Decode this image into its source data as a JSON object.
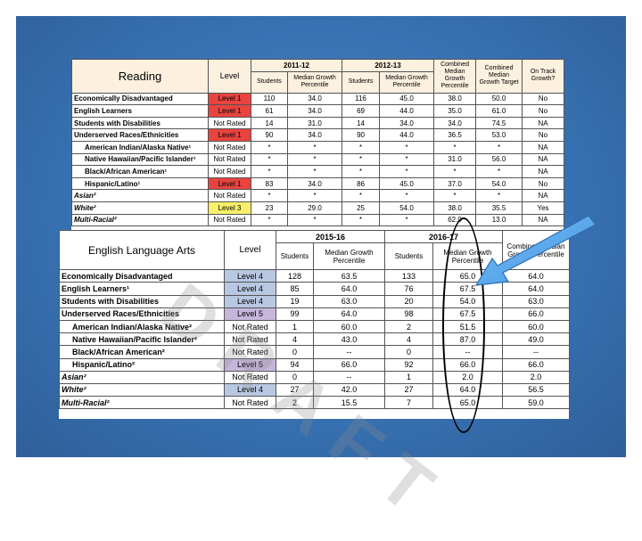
{
  "reading": {
    "title": "Reading",
    "level_header": "Level",
    "year1": "2011-12",
    "year2": "2012-13",
    "students_header": "Students",
    "mgp_header": "Median Growth Percentile",
    "combined_mgp_header": "Combined Median Growth Percentile",
    "combined_target_header": "Combined Median Growth Target",
    "on_track_header": "On Track Growth?",
    "rows": [
      {
        "label": "Economically Disadvantaged",
        "level": "Level 1",
        "s1": "110",
        "m1": "34.0",
        "s2": "116",
        "m2": "45.0",
        "cmgp": "38.0",
        "target": "50.0",
        "track": "No",
        "style": "red",
        "indent": false,
        "italic": false
      },
      {
        "label": "English Learners",
        "level": "Level 1",
        "s1": "61",
        "m1": "34.0",
        "s2": "69",
        "m2": "44.0",
        "cmgp": "35.0",
        "target": "61.0",
        "track": "No",
        "style": "red",
        "indent": false,
        "italic": false
      },
      {
        "label": "Students with Disabilities",
        "level": "Not Rated",
        "s1": "14",
        "m1": "31.0",
        "s2": "14",
        "m2": "34.0",
        "cmgp": "34.0",
        "target": "74.5",
        "track": "NA",
        "style": "plain",
        "indent": false,
        "italic": false
      },
      {
        "label": "Underserved Races/Ethnicities",
        "level": "Level 1",
        "s1": "90",
        "m1": "34.0",
        "s2": "90",
        "m2": "44.0",
        "cmgp": "36.5",
        "target": "53.0",
        "track": "No",
        "style": "red",
        "indent": false,
        "italic": false
      },
      {
        "label": "American Indian/Alaska Native¹",
        "level": "Not Rated",
        "s1": "*",
        "m1": "*",
        "s2": "*",
        "m2": "*",
        "cmgp": "*",
        "target": "*",
        "track": "NA",
        "style": "plain",
        "indent": true,
        "italic": false
      },
      {
        "label": "Native Hawaiian/Pacific Islander¹",
        "level": "Not Rated",
        "s1": "*",
        "m1": "*",
        "s2": "*",
        "m2": "*",
        "cmgp": "31.0",
        "target": "56.0",
        "track": "NA",
        "style": "plain",
        "indent": true,
        "italic": false
      },
      {
        "label": "Black/African American¹",
        "level": "Not Rated",
        "s1": "*",
        "m1": "*",
        "s2": "*",
        "m2": "*",
        "cmgp": "*",
        "target": "*",
        "track": "NA",
        "style": "plain",
        "indent": true,
        "italic": false
      },
      {
        "label": "Hispanic/Latino¹",
        "level": "Level 1",
        "s1": "83",
        "m1": "34.0",
        "s2": "86",
        "m2": "45.0",
        "cmgp": "37.0",
        "target": "54.0",
        "track": "No",
        "style": "red",
        "indent": true,
        "italic": false
      },
      {
        "label": "Asian²",
        "level": "Not Rated",
        "s1": "*",
        "m1": "*",
        "s2": "*",
        "m2": "*",
        "cmgp": "*",
        "target": "*",
        "track": "NA",
        "style": "plain",
        "indent": false,
        "italic": true
      },
      {
        "label": "White²",
        "level": "Level 3",
        "s1": "23",
        "m1": "29.0",
        "s2": "25",
        "m2": "54.0",
        "cmgp": "38.0",
        "target": "35.5",
        "track": "Yes",
        "style": "yellow",
        "indent": false,
        "italic": true
      },
      {
        "label": "Multi-Racial²",
        "level": "Not Rated",
        "s1": "*",
        "m1": "*",
        "s2": "*",
        "m2": "*",
        "cmgp": "62.0",
        "target": "13.0",
        "track": "NA",
        "style": "plain",
        "indent": false,
        "italic": true
      }
    ]
  },
  "ela": {
    "title": "English Language Arts",
    "level_header": "Level",
    "year1": "2015-16",
    "year2": "2016-17",
    "students_header": "Students",
    "mgp_header": "Median Growth Percentile",
    "combined_header": "Combined Median Growth Percentile",
    "rows": [
      {
        "label": "Economically Disadvantaged",
        "level": "Level 4",
        "s1": "128",
        "m1": "63.5",
        "s2": "133",
        "m2": "65.0",
        "comb": "64.0",
        "style": "blue",
        "indent": false,
        "italic": false
      },
      {
        "label": "English Learners¹",
        "level": "Level 4",
        "s1": "85",
        "m1": "64.0",
        "s2": "76",
        "m2": "67.5",
        "comb": "64.0",
        "style": "blue",
        "indent": false,
        "italic": false
      },
      {
        "label": "Students with Disabilities",
        "level": "Level 4",
        "s1": "19",
        "m1": "63.0",
        "s2": "20",
        "m2": "54.0",
        "comb": "63.0",
        "style": "blue",
        "indent": false,
        "italic": false
      },
      {
        "label": "Underserved Races/Ethnicities",
        "level": "Level 5",
        "s1": "99",
        "m1": "64.0",
        "s2": "98",
        "m2": "67.5",
        "comb": "66.0",
        "style": "purple",
        "indent": false,
        "italic": false
      },
      {
        "label": "American Indian/Alaska Native²",
        "level": "Not Rated",
        "s1": "1",
        "m1": "60.0",
        "s2": "2",
        "m2": "51.5",
        "comb": "60.0",
        "style": "plain",
        "indent": true,
        "italic": false
      },
      {
        "label": "Native Hawaiian/Pacific Islander²",
        "level": "Not Rated",
        "s1": "4",
        "m1": "43.0",
        "s2": "4",
        "m2": "87.0",
        "comb": "49.0",
        "style": "plain",
        "indent": true,
        "italic": false
      },
      {
        "label": "Black/African American²",
        "level": "Not Rated",
        "s1": "0",
        "m1": "--",
        "s2": "0",
        "m2": "--",
        "comb": "--",
        "style": "plain",
        "indent": true,
        "italic": false
      },
      {
        "label": "Hispanic/Latino²",
        "level": "Level 5",
        "s1": "94",
        "m1": "66.0",
        "s2": "92",
        "m2": "66.0",
        "comb": "66.0",
        "style": "purple",
        "indent": true,
        "italic": false
      },
      {
        "label": "Asian²",
        "level": "Not Rated",
        "s1": "0",
        "m1": "--",
        "s2": "1",
        "m2": "2.0",
        "comb": "2.0",
        "style": "plain",
        "indent": false,
        "italic": true
      },
      {
        "label": "White²",
        "level": "Level 4",
        "s1": "27",
        "m1": "42.0",
        "s2": "27",
        "m2": "64.0",
        "comb": "56.5",
        "style": "blue",
        "indent": false,
        "italic": true
      },
      {
        "label": "Multi-Racial²",
        "level": "Not Rated",
        "s1": "2",
        "m1": "15.5",
        "s2": "7",
        "m2": "65.0",
        "comb": "59.0",
        "style": "plain",
        "indent": false,
        "italic": true
      }
    ]
  },
  "watermark": "DRAFT",
  "colors": {
    "panel": "#3872b3",
    "level_red": "#e8433f",
    "level_yellow": "#f8f06a",
    "level_blue": "#b8c8e2",
    "level_purple": "#c7b6dc",
    "arrow": "#5aa8ee"
  }
}
